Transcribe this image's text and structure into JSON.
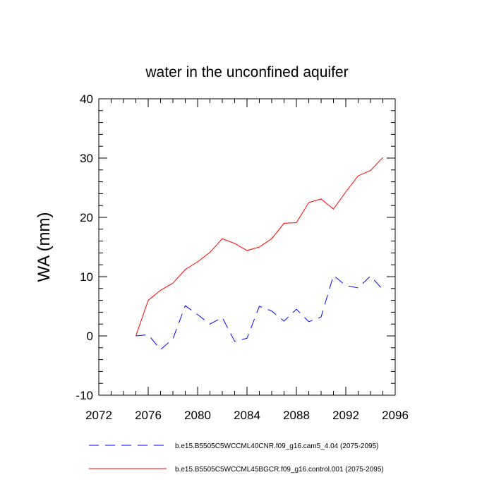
{
  "chart_data": {
    "type": "line",
    "title": "water in the unconfined aquifer",
    "xlabel": "",
    "ylabel": "WA  (mm)",
    "xlim": [
      2072,
      2096
    ],
    "ylim": [
      -10,
      40
    ],
    "x_ticks": [
      2072,
      2076,
      2080,
      2084,
      2088,
      2092,
      2096
    ],
    "y_ticks": [
      -10,
      0,
      10,
      20,
      30,
      40
    ],
    "grid": false,
    "legend_position": "bottom",
    "series": [
      {
        "name": "b.e15.B5505C5WCCML40CNR.f09_g16.cam5_4.04 (2075-2095)",
        "color": "#0000ff",
        "dash": "dashed",
        "x": [
          2075,
          2076,
          2077,
          2078,
          2079,
          2080,
          2081,
          2082,
          2083,
          2084,
          2085,
          2086,
          2087,
          2088,
          2089,
          2090,
          2091,
          2092,
          2093,
          2094,
          2095
        ],
        "values": [
          0.0,
          0.2,
          -2.3,
          -0.5,
          5.1,
          3.6,
          2.0,
          3.1,
          -0.9,
          -0.4,
          5.0,
          4.2,
          2.5,
          4.5,
          2.4,
          3.2,
          10.2,
          8.5,
          8.1,
          10.1,
          7.8
        ]
      },
      {
        "name": "b.e15.B5505C5WCCML45BGCR.f09_g16.control.001 (2075-2095)",
        "color": "#ff0000",
        "dash": "solid",
        "x": [
          2075,
          2076,
          2077,
          2078,
          2079,
          2080,
          2081,
          2082,
          2083,
          2084,
          2085,
          2086,
          2087,
          2088,
          2089,
          2090,
          2091,
          2092,
          2093,
          2094,
          2095
        ],
        "values": [
          0.0,
          6.0,
          7.7,
          8.9,
          11.2,
          12.5,
          14.1,
          16.4,
          15.6,
          14.4,
          15.0,
          16.4,
          19.0,
          19.1,
          22.5,
          23.1,
          21.4,
          24.3,
          27.0,
          27.9,
          30.1
        ]
      }
    ]
  }
}
